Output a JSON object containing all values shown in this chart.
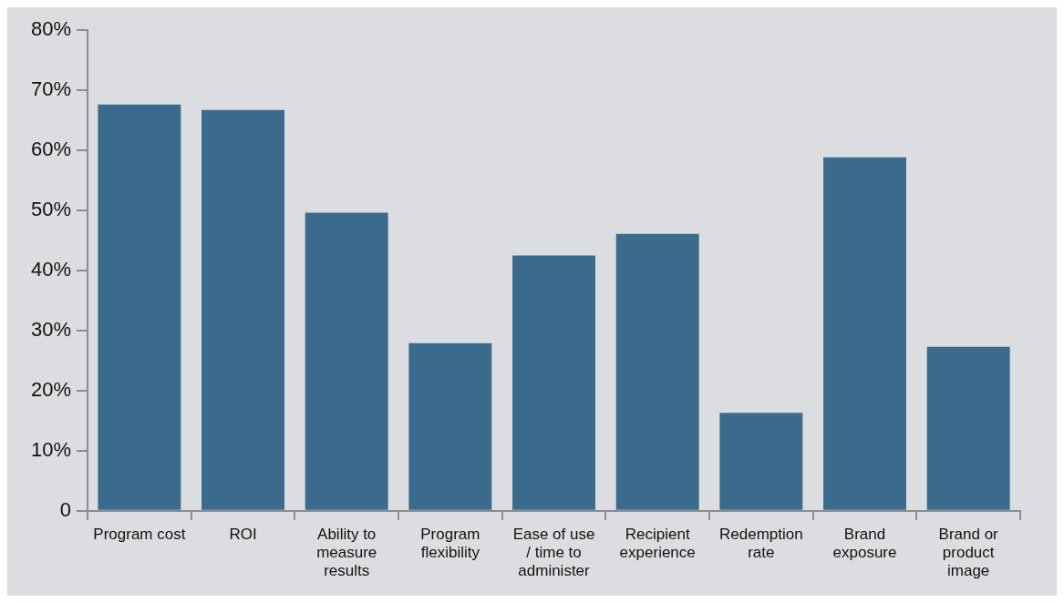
{
  "chart_data": {
    "type": "bar",
    "categories": [
      "Program cost",
      "ROI",
      "Ability to measure results",
      "Program flexibility",
      "Ease of use / time to administer",
      "Recipient experience",
      "Redemption rate",
      "Brand exposure",
      "Brand or product image"
    ],
    "values": [
      67.6,
      66.7,
      49.6,
      27.9,
      42.5,
      46.1,
      16.3,
      58.8,
      27.3
    ],
    "color": "#3b6b8c",
    "ylim": [
      0,
      80
    ],
    "yticks": [
      0,
      {
        "value": 10,
        "label": "10%"
      },
      {
        "value": 20,
        "label": "20%"
      },
      {
        "value": 30,
        "label": "30%"
      },
      {
        "value": 40,
        "label": "40%"
      },
      {
        "value": 50,
        "label": "50%"
      },
      {
        "value": 60,
        "label": "60%"
      },
      {
        "value": 70,
        "label": "70%"
      },
      {
        "value": 80,
        "label": "80%"
      }
    ],
    "grid": false,
    "legend": false
  }
}
